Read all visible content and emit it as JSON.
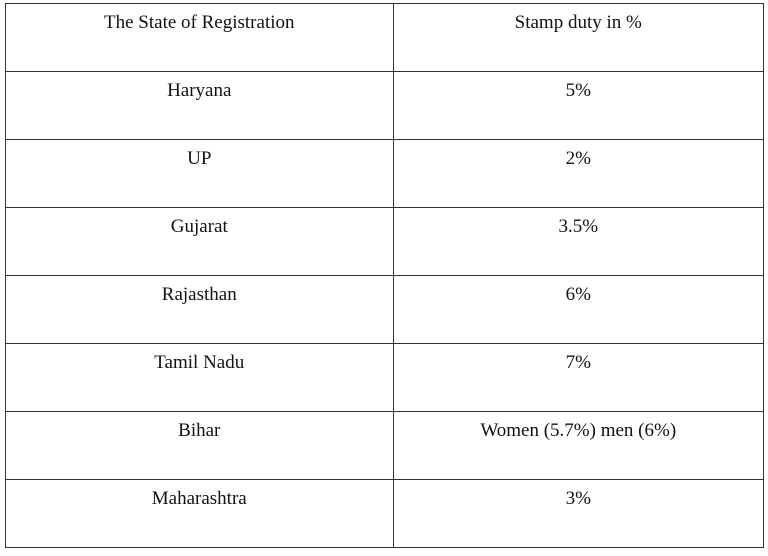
{
  "table": {
    "headers": [
      "The State of Registration",
      "Stamp duty in %"
    ],
    "rows": [
      [
        "Haryana",
        "5%"
      ],
      [
        "UP",
        "2%"
      ],
      [
        "Gujarat",
        "3.5%"
      ],
      [
        "Rajasthan",
        "6%"
      ],
      [
        "Tamil Nadu",
        "7%"
      ],
      [
        "Bihar",
        "Women (5.7%) men (6%)"
      ],
      [
        "Maharashtra",
        "3%"
      ]
    ]
  }
}
